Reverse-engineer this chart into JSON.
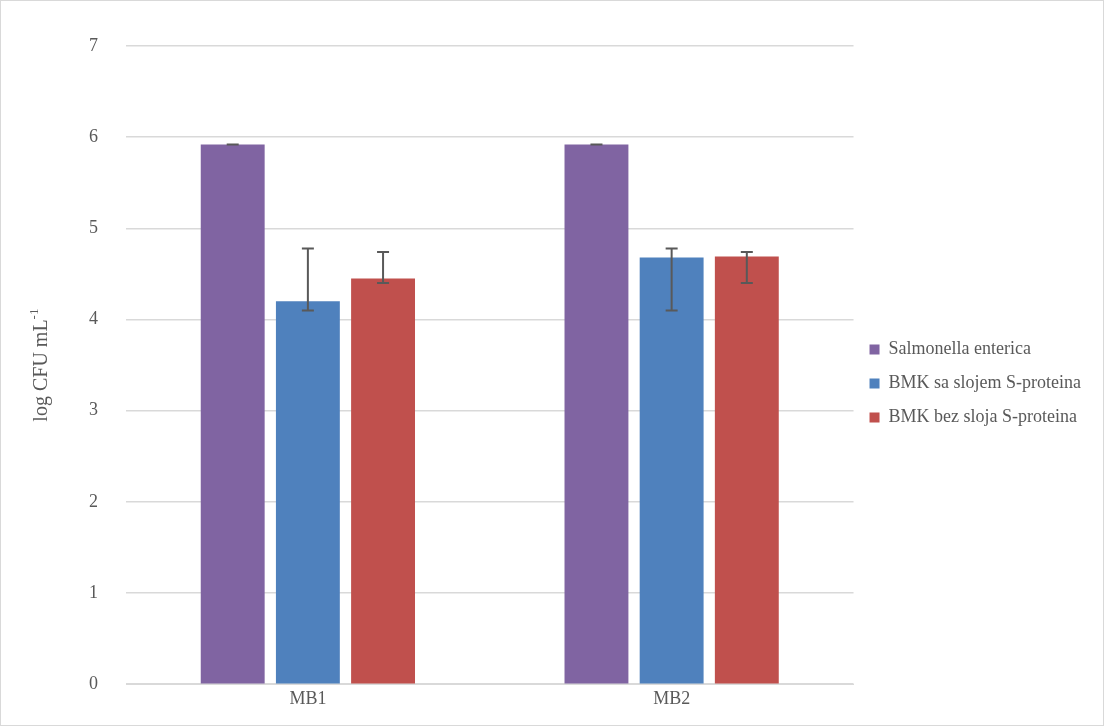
{
  "chart_data": {
    "type": "bar",
    "ylabel": "log CFU mL$^{-1}$",
    "categories": [
      "MB1",
      "MB2"
    ],
    "series": [
      {
        "name": "Salmonella enterica",
        "color": "#8064a2",
        "values": [
          5.92,
          5.92
        ],
        "errors": [
          0,
          0
        ]
      },
      {
        "name": "BMK sa slojem S-proteina",
        "color": "#4f81bd",
        "values": [
          4.2,
          4.68
        ],
        "errors": [
          [
            4.1,
            4.78
          ],
          [
            4.1,
            4.78
          ]
        ]
      },
      {
        "name": "BMK bez sloja S-proteina",
        "color": "#c0504d",
        "values": [
          4.45,
          4.69
        ],
        "errors": [
          [
            4.4,
            4.74
          ],
          [
            4.4,
            4.74
          ]
        ]
      }
    ],
    "ylim": [
      0,
      7
    ],
    "yticks": [
      0,
      1,
      2,
      3,
      4,
      5,
      6,
      7
    ],
    "grid": "y",
    "legend": "right"
  }
}
